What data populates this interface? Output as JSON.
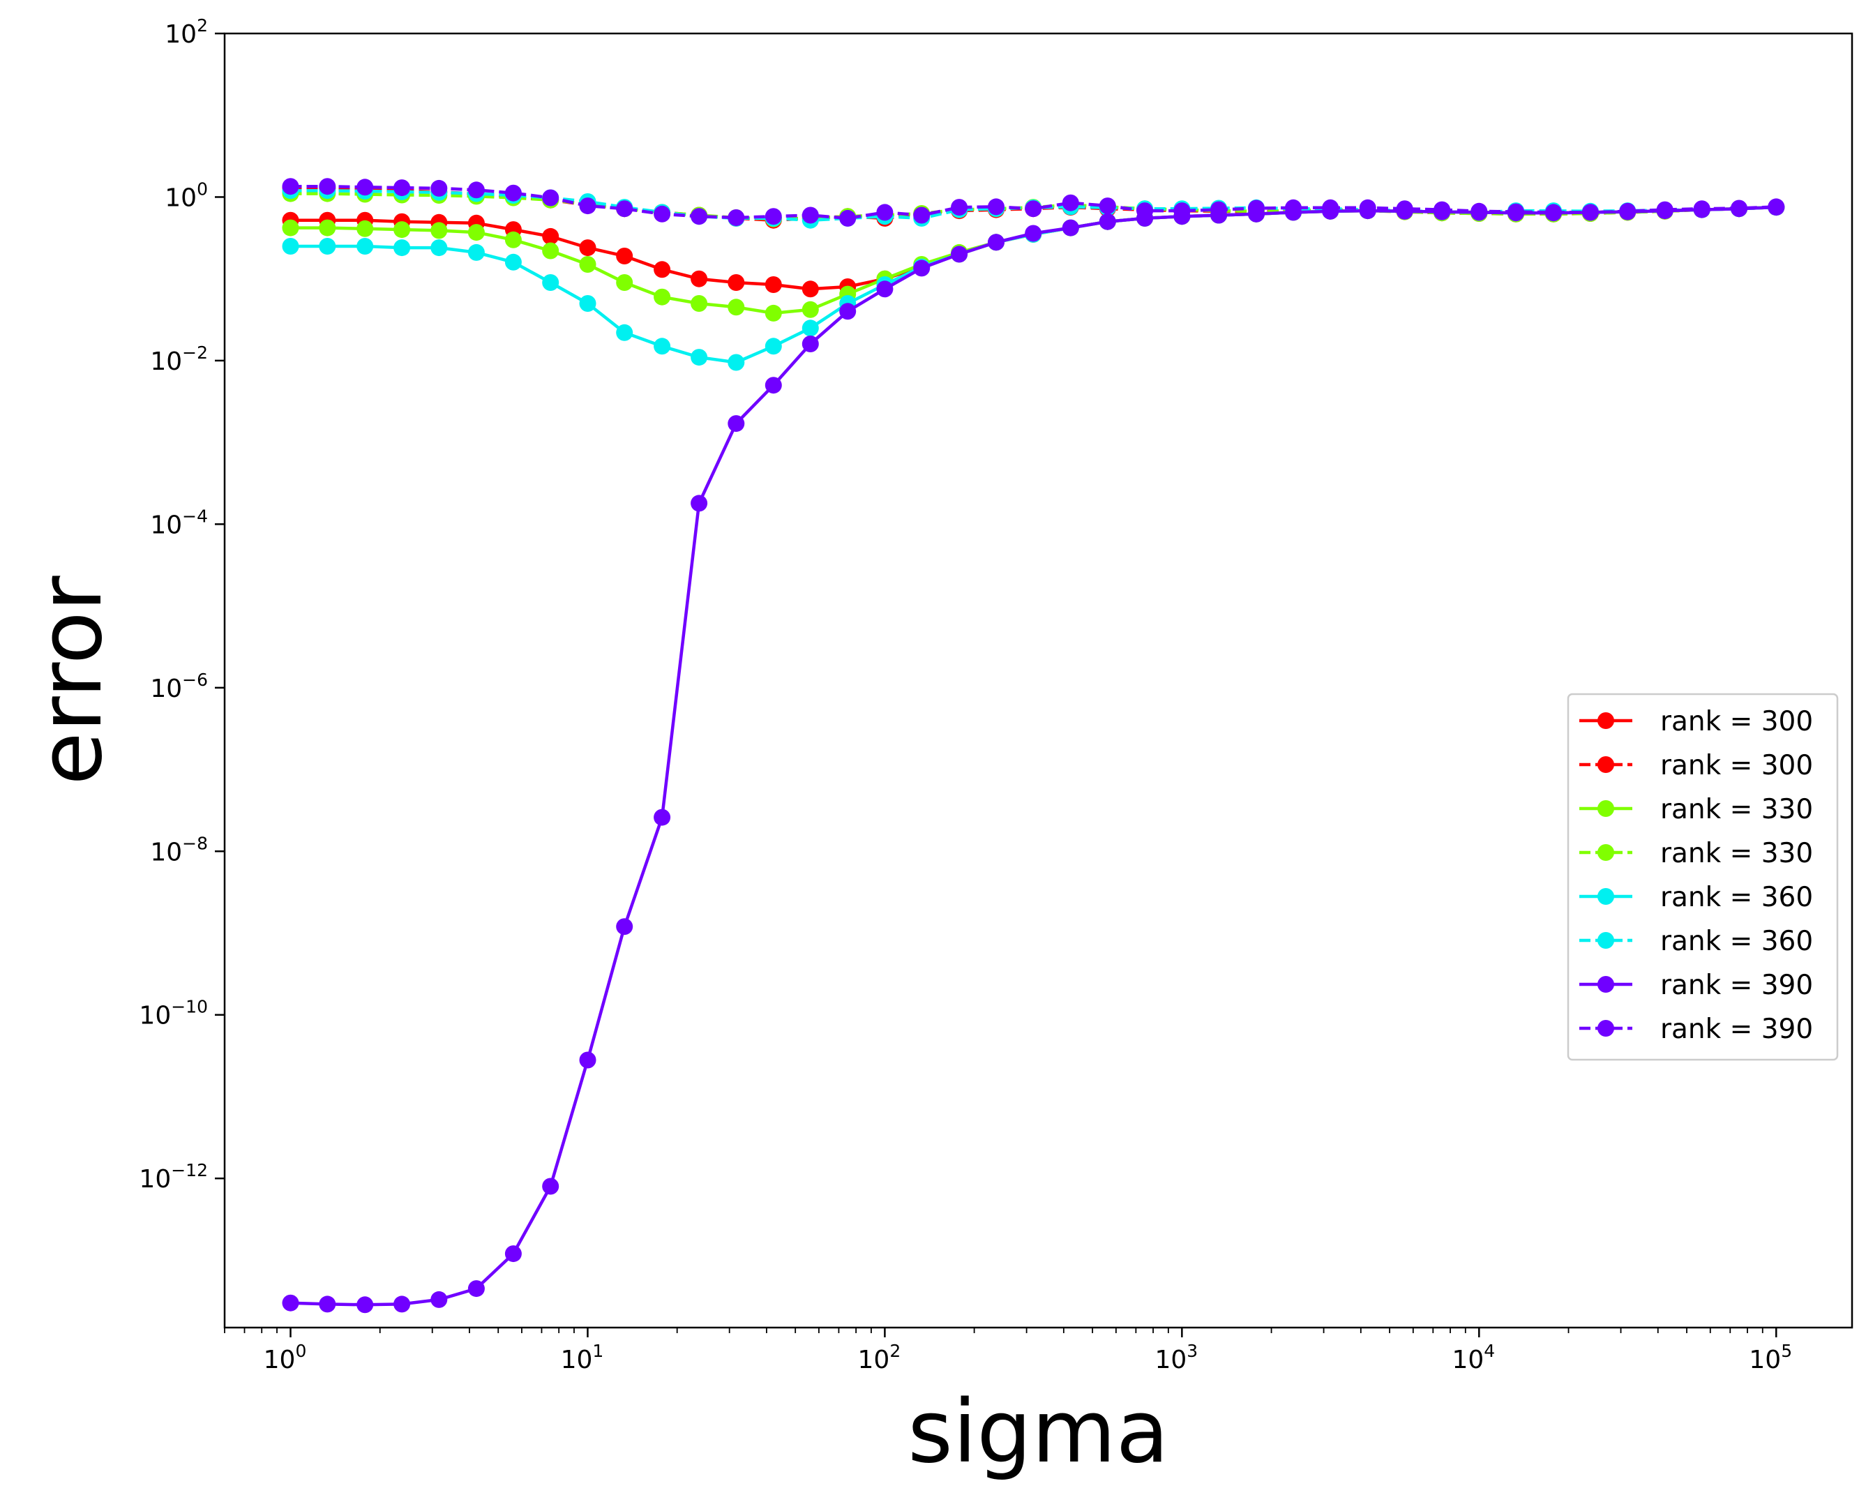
{
  "chart_data": {
    "type": "line",
    "title": "",
    "xlabel": "sigma",
    "ylabel": "error",
    "xscale": "log",
    "yscale": "log",
    "xlim": [
      0.6,
      180000
    ],
    "ylim": [
      1.5e-14,
      100
    ],
    "x_ticks": [
      {
        "base": "10",
        "exp": "0"
      },
      {
        "base": "10",
        "exp": "1"
      },
      {
        "base": "10",
        "exp": "2"
      },
      {
        "base": "10",
        "exp": "3"
      },
      {
        "base": "10",
        "exp": "4"
      },
      {
        "base": "10",
        "exp": "5"
      }
    ],
    "y_ticks": [
      {
        "base": "10",
        "exp": "2"
      },
      {
        "base": "10",
        "exp": "0"
      },
      {
        "base": "10",
        "exp": "−2"
      },
      {
        "base": "10",
        "exp": "−4"
      },
      {
        "base": "10",
        "exp": "−6"
      },
      {
        "base": "10",
        "exp": "−8"
      },
      {
        "base": "10",
        "exp": "−10"
      },
      {
        "base": "10",
        "exp": "−12"
      }
    ],
    "grid": false,
    "legend_position": "right",
    "x": [
      1,
      1.33,
      1.78,
      2.37,
      3.16,
      4.22,
      5.62,
      7.5,
      10,
      13.3,
      17.8,
      23.7,
      31.6,
      42.2,
      56.2,
      75,
      100,
      133,
      178,
      237,
      316,
      422,
      562,
      750,
      1000,
      1330,
      1780,
      2370,
      3160,
      4220,
      5620,
      7500,
      10000,
      13300,
      17800,
      23700,
      31600,
      42200,
      56200,
      75000,
      100000
    ],
    "series": [
      {
        "name": "rank = 300",
        "style": "solid",
        "color": "#ff0000",
        "values": [
          0.52,
          0.52,
          0.52,
          0.5,
          0.49,
          0.48,
          0.4,
          0.33,
          0.24,
          0.19,
          0.13,
          0.1,
          0.09,
          0.085,
          0.075,
          0.08,
          0.1,
          0.14,
          0.2,
          0.28,
          0.35,
          0.42,
          0.5,
          0.55,
          0.58,
          0.6,
          0.62,
          0.65,
          0.67,
          0.68,
          0.67,
          0.66,
          0.65,
          0.64,
          0.64,
          0.65,
          0.66,
          0.68,
          0.7,
          0.72,
          0.75
        ]
      },
      {
        "name": "rank = 300",
        "style": "dashed",
        "color": "#ff0000",
        "values": [
          1.3,
          1.28,
          1.25,
          1.2,
          1.15,
          1.1,
          1.0,
          0.92,
          0.8,
          0.72,
          0.65,
          0.6,
          0.55,
          0.52,
          0.55,
          0.58,
          0.55,
          0.62,
          0.68,
          0.7,
          0.72,
          0.75,
          0.72,
          0.7,
          0.68,
          0.67,
          0.66,
          0.68,
          0.7,
          0.68,
          0.66,
          0.64,
          0.63,
          0.62,
          0.62,
          0.63,
          0.65,
          0.67,
          0.7,
          0.72,
          0.75
        ]
      },
      {
        "name": "rank = 330",
        "style": "solid",
        "color": "#80ff00",
        "values": [
          0.42,
          0.42,
          0.41,
          0.4,
          0.39,
          0.37,
          0.3,
          0.22,
          0.15,
          0.09,
          0.06,
          0.05,
          0.045,
          0.038,
          0.042,
          0.065,
          0.1,
          0.15,
          0.21,
          0.28,
          0.35,
          0.42,
          0.5,
          0.55,
          0.58,
          0.6,
          0.62,
          0.65,
          0.67,
          0.68,
          0.67,
          0.66,
          0.65,
          0.64,
          0.64,
          0.65,
          0.66,
          0.68,
          0.7,
          0.72,
          0.75
        ]
      },
      {
        "name": "rank = 330",
        "style": "dashed",
        "color": "#80ff00",
        "values": [
          1.1,
          1.1,
          1.08,
          1.06,
          1.05,
          1.02,
          0.98,
          0.92,
          0.82,
          0.72,
          0.65,
          0.6,
          0.56,
          0.54,
          0.55,
          0.58,
          0.6,
          0.63,
          0.7,
          0.72,
          0.75,
          0.8,
          0.76,
          0.72,
          0.7,
          0.68,
          0.67,
          0.68,
          0.7,
          0.68,
          0.66,
          0.64,
          0.63,
          0.62,
          0.62,
          0.63,
          0.65,
          0.67,
          0.7,
          0.72,
          0.75
        ]
      },
      {
        "name": "rank = 360",
        "style": "solid",
        "color": "#00f0f0",
        "values": [
          0.25,
          0.25,
          0.25,
          0.24,
          0.24,
          0.21,
          0.16,
          0.09,
          0.05,
          0.022,
          0.015,
          0.011,
          0.0095,
          0.015,
          0.025,
          0.05,
          0.085,
          0.14,
          0.2,
          0.28,
          0.35,
          0.42,
          0.5,
          0.55,
          0.58,
          0.6,
          0.62,
          0.65,
          0.67,
          0.68,
          0.67,
          0.66,
          0.65,
          0.64,
          0.64,
          0.65,
          0.66,
          0.68,
          0.7,
          0.72,
          0.75
        ]
      },
      {
        "name": "rank = 360",
        "style": "dashed",
        "color": "#00f0f0",
        "values": [
          1.2,
          1.2,
          1.18,
          1.16,
          1.14,
          1.1,
          1.05,
          0.98,
          0.88,
          0.75,
          0.65,
          0.58,
          0.55,
          0.55,
          0.52,
          0.55,
          0.58,
          0.55,
          0.7,
          0.72,
          0.74,
          0.76,
          0.74,
          0.72,
          0.72,
          0.73,
          0.74,
          0.72,
          0.72,
          0.7,
          0.68,
          0.66,
          0.65,
          0.68,
          0.68,
          0.67,
          0.68,
          0.69,
          0.7,
          0.72,
          0.75
        ]
      },
      {
        "name": "rank = 390",
        "style": "solid",
        "color": "#7000ff",
        "values": [
          3e-14,
          2.9e-14,
          2.85e-14,
          2.9e-14,
          3.3e-14,
          4.5e-14,
          1.2e-13,
          8e-13,
          2.8e-11,
          1.2e-09,
          2.6e-08,
          0.00018,
          0.0017,
          0.005,
          0.016,
          0.04,
          0.075,
          0.135,
          0.2,
          0.28,
          0.36,
          0.42,
          0.5,
          0.55,
          0.58,
          0.6,
          0.62,
          0.65,
          0.67,
          0.68,
          0.67,
          0.66,
          0.65,
          0.64,
          0.64,
          0.65,
          0.66,
          0.68,
          0.7,
          0.72,
          0.75
        ]
      },
      {
        "name": "rank = 390",
        "style": "dashed",
        "color": "#7000ff",
        "values": [
          1.35,
          1.35,
          1.32,
          1.3,
          1.28,
          1.22,
          1.12,
          0.98,
          0.78,
          0.72,
          0.62,
          0.58,
          0.56,
          0.58,
          0.6,
          0.55,
          0.65,
          0.6,
          0.75,
          0.76,
          0.72,
          0.85,
          0.78,
          0.68,
          0.68,
          0.7,
          0.73,
          0.74,
          0.74,
          0.74,
          0.72,
          0.7,
          0.67,
          0.66,
          0.65,
          0.65,
          0.67,
          0.7,
          0.72,
          0.73,
          0.76
        ]
      }
    ]
  }
}
